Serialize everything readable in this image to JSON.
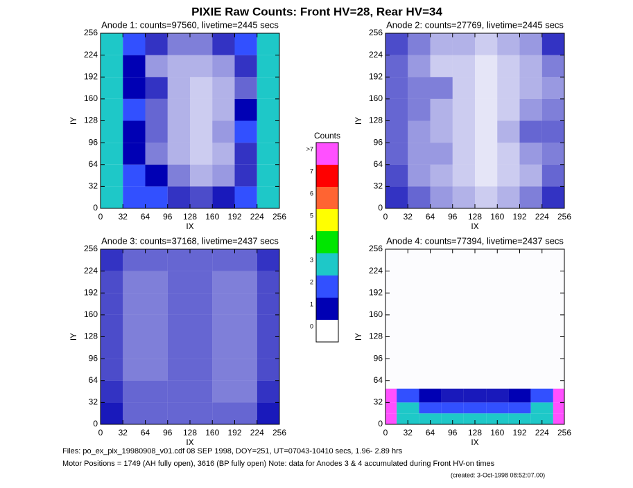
{
  "chart_data": {
    "type": "heatmap",
    "title": "PIXIE Raw Counts:  Front HV=28, Rear HV=34",
    "colorbar": {
      "title": "Counts",
      "labels": [
        "0",
        "1",
        "2",
        "3",
        "4",
        "5",
        "6",
        "7",
        ">7"
      ],
      "colors": [
        "#ffffff",
        "#0000b4",
        "#3250ff",
        "#1ec8c8",
        "#00e600",
        "#ffff00",
        "#ff6432",
        "#ff0000",
        "#ff50ff"
      ]
    },
    "panels": [
      {
        "title": "Anode 1: counts=97560, livetime=2445 secs",
        "xlabel": "IX",
        "ylabel": "IY",
        "xlim": [
          0,
          256
        ],
        "ylim": [
          0,
          256
        ],
        "xticks": [
          0,
          32,
          64,
          96,
          128,
          160,
          192,
          224,
          256
        ],
        "yticks": [
          0,
          32,
          64,
          96,
          128,
          160,
          192,
          224,
          256
        ],
        "xbins": [
          0,
          32,
          64,
          96,
          128,
          160,
          192,
          224,
          256
        ],
        "ybins": [
          0,
          32,
          64,
          96,
          128,
          160,
          192,
          224,
          256
        ],
        "z": [
          [
            2.8,
            1.5,
            1.2,
            0.8,
            0.7,
            0.9,
            1.4,
            2.8
          ],
          [
            2.5,
            1.2,
            1.0,
            0.5,
            0.3,
            0.4,
            0.8,
            2.5
          ],
          [
            2.5,
            1.0,
            0.5,
            0.3,
            0.2,
            0.3,
            0.8,
            2.2
          ],
          [
            2.5,
            1.0,
            0.6,
            0.3,
            0.2,
            0.4,
            1.2,
            2.5
          ],
          [
            2.5,
            1.2,
            0.6,
            0.3,
            0.2,
            0.3,
            1.0,
            2.5
          ],
          [
            2.5,
            1.0,
            0.8,
            0.3,
            0.2,
            0.3,
            0.6,
            2.2
          ],
          [
            2.5,
            1.0,
            0.4,
            0.3,
            0.3,
            0.4,
            0.8,
            2.5
          ],
          [
            2.5,
            1.2,
            0.8,
            0.5,
            0.5,
            0.8,
            1.2,
            2.5
          ]
        ]
      },
      {
        "title": "Anode 2: counts=27769, livetime=2445 secs",
        "xlabel": "IX",
        "ylabel": "IY",
        "xlim": [
          0,
          256
        ],
        "ylim": [
          0,
          256
        ],
        "xticks": [
          0,
          32,
          64,
          96,
          128,
          160,
          192,
          224,
          256
        ],
        "yticks": [
          0,
          32,
          64,
          96,
          128,
          160,
          192,
          224,
          256
        ],
        "xbins": [
          0,
          32,
          64,
          96,
          128,
          160,
          192,
          224,
          256
        ],
        "ybins": [
          0,
          32,
          64,
          96,
          128,
          160,
          192,
          224,
          256
        ],
        "z": [
          [
            0.8,
            0.6,
            0.4,
            0.3,
            0.2,
            0.3,
            0.5,
            0.8
          ],
          [
            0.7,
            0.4,
            0.3,
            0.2,
            0.1,
            0.2,
            0.3,
            0.6
          ],
          [
            0.6,
            0.4,
            0.4,
            0.2,
            0.1,
            0.2,
            0.4,
            0.5
          ],
          [
            0.6,
            0.4,
            0.3,
            0.2,
            0.1,
            0.3,
            0.6,
            0.6
          ],
          [
            0.6,
            0.5,
            0.3,
            0.2,
            0.1,
            0.2,
            0.4,
            0.5
          ],
          [
            0.6,
            0.5,
            0.5,
            0.2,
            0.1,
            0.2,
            0.3,
            0.4
          ],
          [
            0.6,
            0.4,
            0.2,
            0.2,
            0.1,
            0.2,
            0.3,
            0.5
          ],
          [
            0.7,
            0.5,
            0.3,
            0.3,
            0.2,
            0.3,
            0.4,
            0.8
          ]
        ]
      },
      {
        "title": "Anode 3: counts=37168, livetime=2437 secs",
        "xlabel": "IX",
        "ylabel": "IY",
        "xlim": [
          0,
          256
        ],
        "ylim": [
          0,
          256
        ],
        "xticks": [
          0,
          32,
          64,
          96,
          128,
          160,
          192,
          224,
          256
        ],
        "yticks": [
          0,
          32,
          64,
          96,
          128,
          160,
          192,
          224,
          256
        ],
        "xbins": [
          0,
          32,
          64,
          96,
          128,
          160,
          192,
          224,
          256
        ],
        "ybins": [
          0,
          32,
          64,
          96,
          128,
          160,
          192,
          224,
          256
        ],
        "z": [
          [
            0.9,
            0.6,
            0.6,
            0.6,
            0.6,
            0.6,
            0.6,
            0.9
          ],
          [
            0.8,
            0.6,
            0.6,
            0.6,
            0.6,
            0.5,
            0.5,
            0.8
          ],
          [
            0.7,
            0.5,
            0.5,
            0.6,
            0.6,
            0.5,
            0.5,
            0.7
          ],
          [
            0.7,
            0.5,
            0.5,
            0.6,
            0.6,
            0.5,
            0.5,
            0.7
          ],
          [
            0.7,
            0.5,
            0.5,
            0.6,
            0.6,
            0.5,
            0.5,
            0.7
          ],
          [
            0.7,
            0.5,
            0.5,
            0.6,
            0.6,
            0.5,
            0.5,
            0.7
          ],
          [
            0.7,
            0.5,
            0.5,
            0.6,
            0.6,
            0.5,
            0.5,
            0.7
          ],
          [
            0.8,
            0.6,
            0.6,
            0.6,
            0.6,
            0.6,
            0.6,
            0.8
          ]
        ]
      },
      {
        "title": "Anode 4: counts=77394, livetime=2437 secs",
        "xlabel": "IX",
        "ylabel": "IY",
        "xlim": [
          0,
          256
        ],
        "ylim": [
          0,
          256
        ],
        "xticks": [
          0,
          32,
          64,
          96,
          128,
          160,
          192,
          224,
          256
        ],
        "yticks": [
          0,
          32,
          64,
          96,
          128,
          160,
          192,
          224,
          256
        ],
        "xbins": [
          0,
          16,
          48,
          80,
          112,
          144,
          176,
          208,
          240,
          256
        ],
        "ybins": [
          0,
          16,
          32,
          52,
          256
        ],
        "z": [
          [
            8.5,
            3.0,
            2.5,
            2.2,
            2.2,
            2.2,
            2.5,
            3.0,
            8.5
          ],
          [
            8.5,
            2.2,
            1.6,
            1.4,
            1.4,
            1.4,
            1.6,
            2.2,
            8.5
          ],
          [
            8.5,
            1.6,
            1.0,
            0.9,
            0.9,
            0.9,
            1.0,
            1.6,
            8.5
          ],
          [
            0.01,
            0.01,
            0.01,
            0.01,
            0.01,
            0.01,
            0.01,
            0.01,
            0.01
          ]
        ]
      }
    ]
  },
  "footer": [
    "Files: po_ex_pix_19980908_v01.cdf    08 SEP 1998, DOY=251, UT=07043-10410 secs,  1.96- 2.89 hrs",
    "Motor Positions = 1749 (AH fully open), 3616 (BP fully open)    Note: data for Anodes 3 & 4 accumulated during Front HV-on times",
    "(created:  3-Oct-1998 08:52:07.00)"
  ]
}
